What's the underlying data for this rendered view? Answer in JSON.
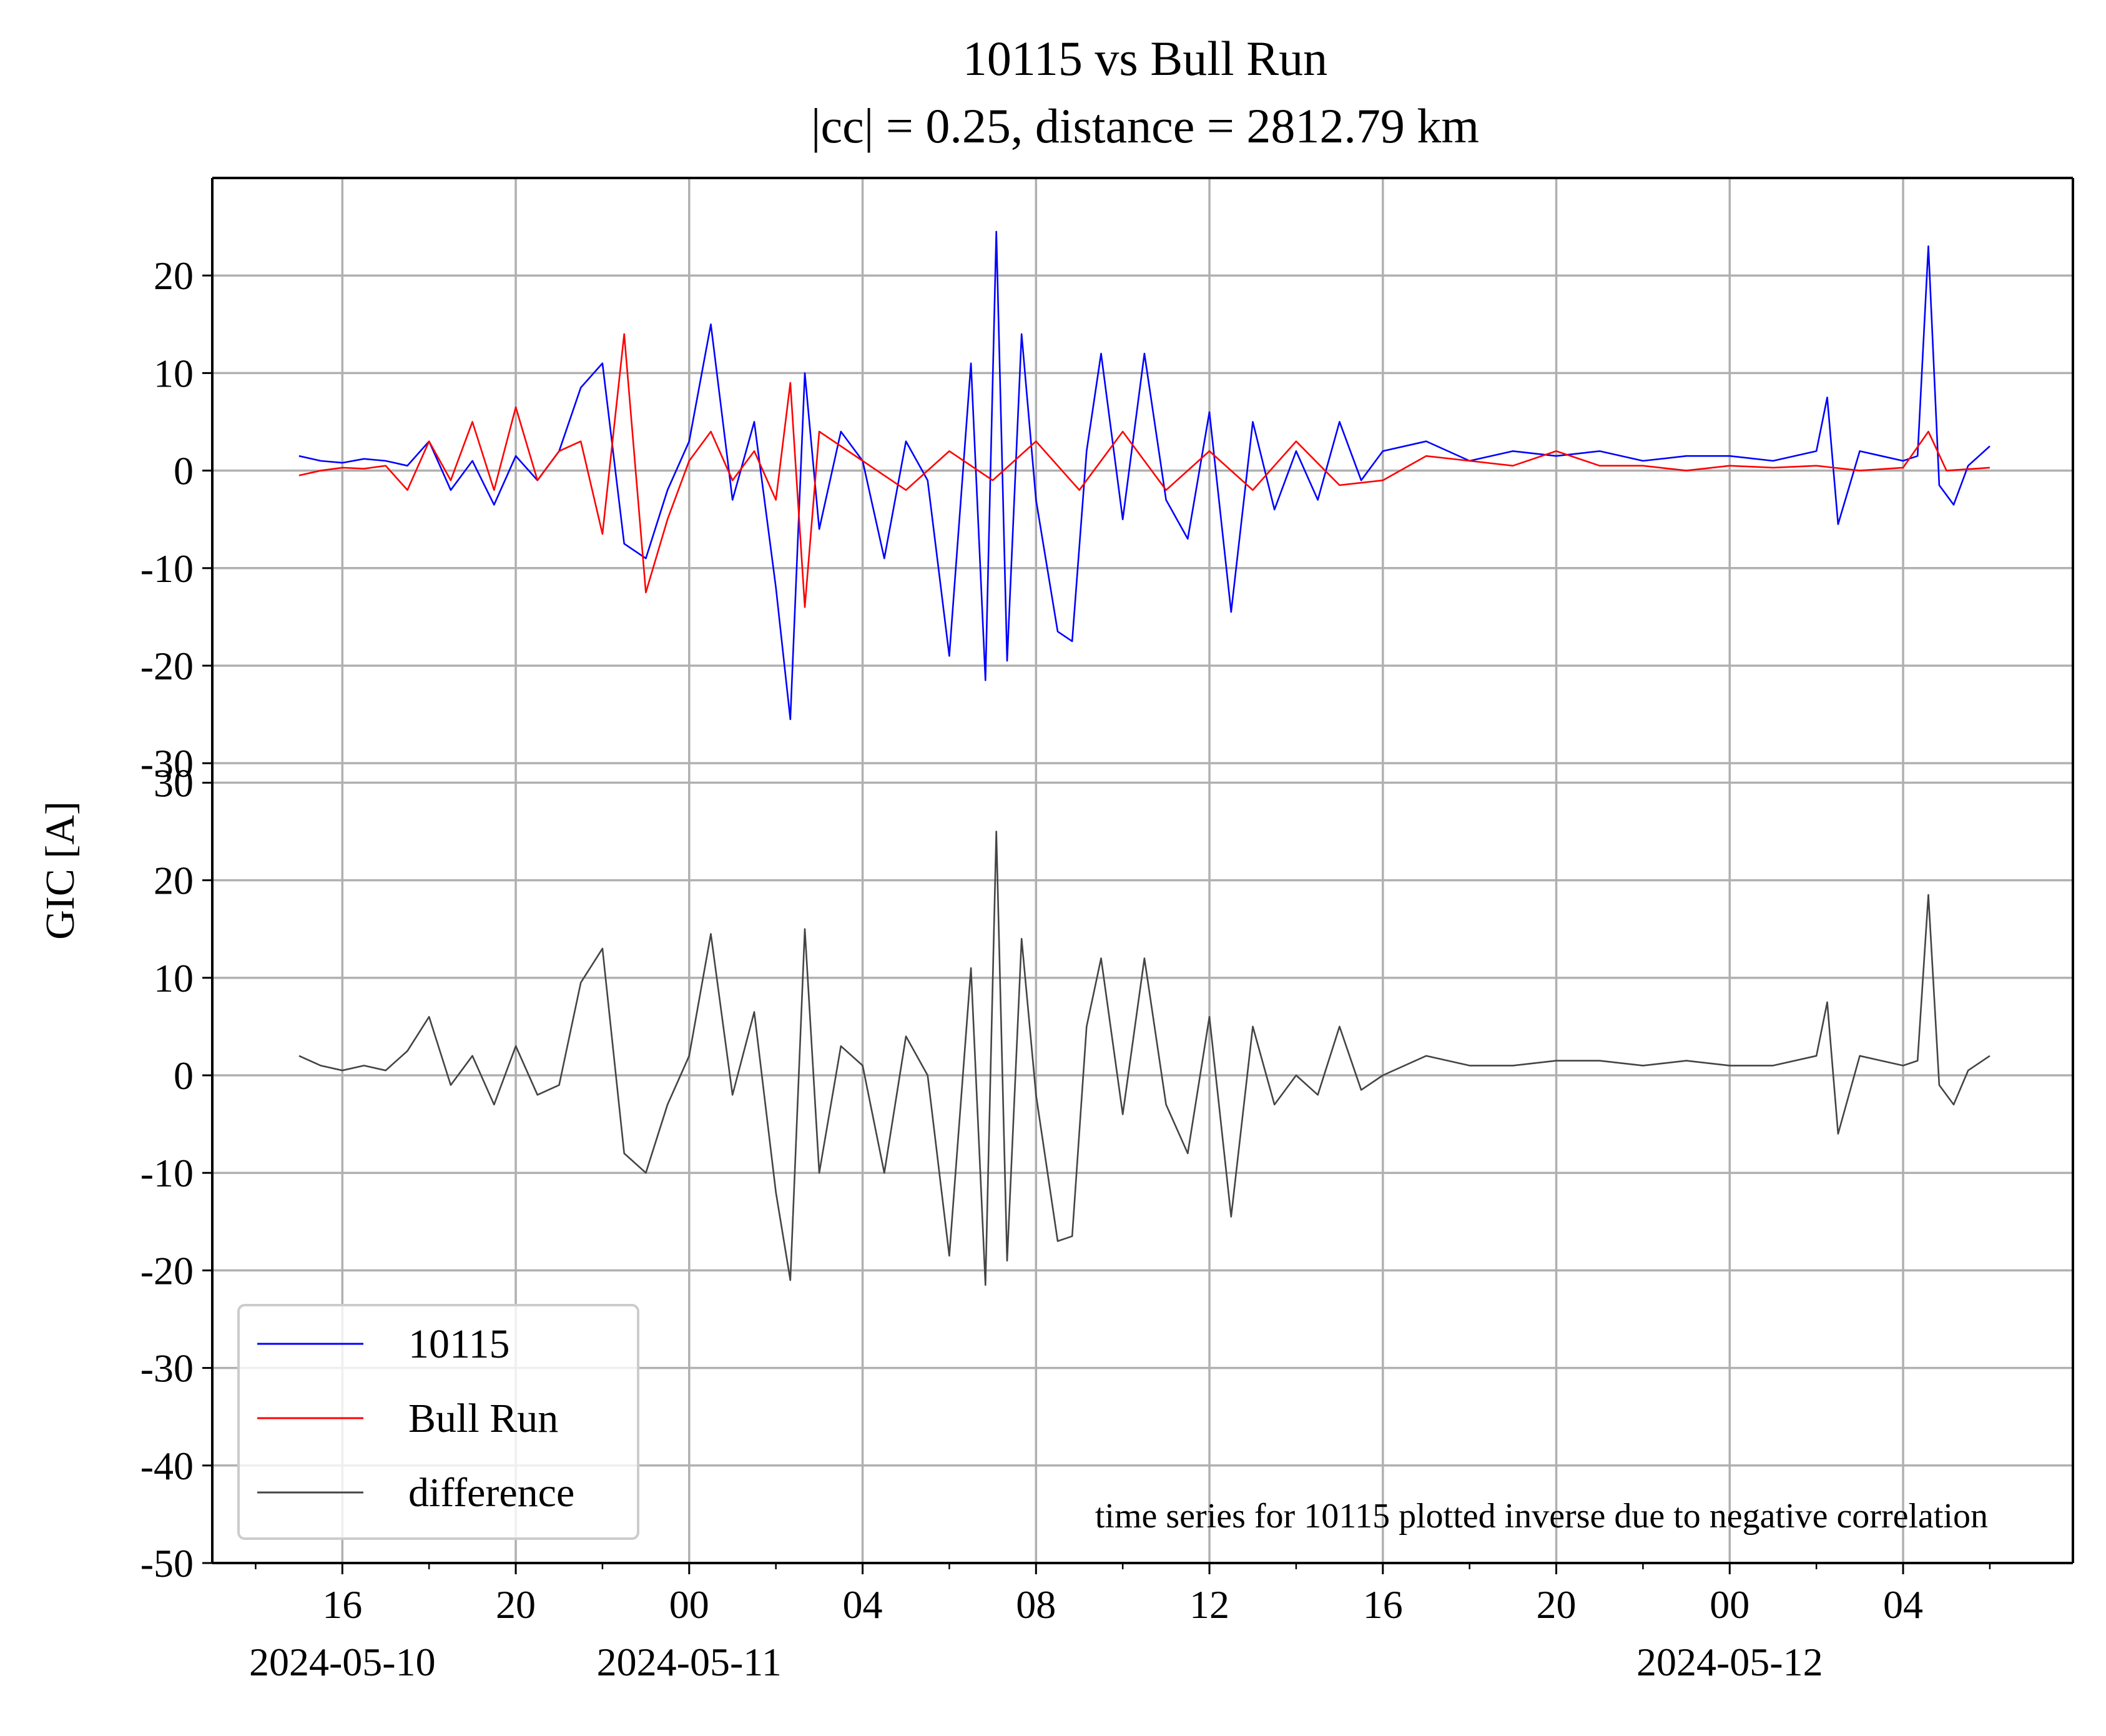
{
  "chart_data": [
    {
      "type": "line",
      "title": "10115 vs Bull Run",
      "subtitle": "|cc| = 0.25, distance = 2812.79 km",
      "ylabel": "GIC [A]",
      "xlim": [
        "2024-05-10T13:00",
        "2024-05-12T07:55"
      ],
      "ylim": [
        -30,
        30
      ],
      "yticks": [
        -30,
        -20,
        -10,
        0,
        10,
        20
      ],
      "grid": true,
      "x_tick_labels": [
        {
          "t": "2024-05-10T16:00",
          "label": "16",
          "date": "2024-05-10"
        },
        {
          "t": "2024-05-10T20:00",
          "label": "20",
          "date": ""
        },
        {
          "t": "2024-05-11T00:00",
          "label": "00",
          "date": "2024-05-11"
        },
        {
          "t": "2024-05-11T04:00",
          "label": "04",
          "date": ""
        },
        {
          "t": "2024-05-11T08:00",
          "label": "08",
          "date": ""
        },
        {
          "t": "2024-05-11T12:00",
          "label": "12",
          "date": ""
        },
        {
          "t": "2024-05-11T16:00",
          "label": "16",
          "date": ""
        },
        {
          "t": "2024-05-11T20:00",
          "label": "20",
          "date": ""
        },
        {
          "t": "2024-05-12T00:00",
          "label": "00",
          "date": "2024-05-12"
        },
        {
          "t": "2024-05-12T04:00",
          "label": "04",
          "date": ""
        }
      ],
      "series": [
        {
          "name": "10115",
          "color": "#0000ff",
          "x": [
            "2024-05-10T15:00",
            "2024-05-10T15:30",
            "2024-05-10T16:00",
            "2024-05-10T16:30",
            "2024-05-10T17:00",
            "2024-05-10T17:30",
            "2024-05-10T18:00",
            "2024-05-10T18:30",
            "2024-05-10T19:00",
            "2024-05-10T19:30",
            "2024-05-10T20:00",
            "2024-05-10T20:30",
            "2024-05-10T21:00",
            "2024-05-10T21:30",
            "2024-05-10T22:00",
            "2024-05-10T22:30",
            "2024-05-10T23:00",
            "2024-05-10T23:30",
            "2024-05-11T00:00",
            "2024-05-11T00:30",
            "2024-05-11T01:00",
            "2024-05-11T01:30",
            "2024-05-11T02:00",
            "2024-05-11T02:20",
            "2024-05-11T02:40",
            "2024-05-11T03:00",
            "2024-05-11T03:30",
            "2024-05-11T04:00",
            "2024-05-11T04:30",
            "2024-05-11T05:00",
            "2024-05-11T05:30",
            "2024-05-11T06:00",
            "2024-05-11T06:30",
            "2024-05-11T06:50",
            "2024-05-11T07:05",
            "2024-05-11T07:20",
            "2024-05-11T07:40",
            "2024-05-11T08:00",
            "2024-05-11T08:30",
            "2024-05-11T08:50",
            "2024-05-11T09:10",
            "2024-05-11T09:30",
            "2024-05-11T10:00",
            "2024-05-11T10:30",
            "2024-05-11T11:00",
            "2024-05-11T11:30",
            "2024-05-11T12:00",
            "2024-05-11T12:30",
            "2024-05-11T13:00",
            "2024-05-11T13:30",
            "2024-05-11T14:00",
            "2024-05-11T14:30",
            "2024-05-11T15:00",
            "2024-05-11T15:30",
            "2024-05-11T16:00",
            "2024-05-11T17:00",
            "2024-05-11T18:00",
            "2024-05-11T19:00",
            "2024-05-11T20:00",
            "2024-05-11T21:00",
            "2024-05-11T22:00",
            "2024-05-11T23:00",
            "2024-05-12T00:00",
            "2024-05-12T01:00",
            "2024-05-12T02:00",
            "2024-05-12T02:15",
            "2024-05-12T02:30",
            "2024-05-12T03:00",
            "2024-05-12T03:30",
            "2024-05-12T04:00",
            "2024-05-12T04:20",
            "2024-05-12T04:35",
            "2024-05-12T04:50",
            "2024-05-12T05:10",
            "2024-05-12T05:30",
            "2024-05-12T06:00"
          ],
          "values": [
            1.5,
            1.0,
            0.8,
            1.2,
            1.0,
            0.5,
            3.0,
            -2.0,
            1.0,
            -3.5,
            1.5,
            -1.0,
            2.0,
            8.5,
            11.0,
            -7.5,
            -9.0,
            -2.0,
            3.0,
            15.0,
            -3.0,
            5.0,
            -12.0,
            -25.5,
            10.0,
            -6.0,
            4.0,
            1.0,
            -9.0,
            3.0,
            -1.0,
            -19.0,
            11.0,
            -21.5,
            24.5,
            -19.5,
            14.0,
            -3.0,
            -16.5,
            -17.5,
            2.0,
            12.0,
            -5.0,
            12.0,
            -3.0,
            -7.0,
            6.0,
            -14.5,
            5.0,
            -4.0,
            2.0,
            -3.0,
            5.0,
            -1.0,
            2.0,
            3.0,
            1.0,
            2.0,
            1.5,
            2.0,
            1.0,
            1.5,
            1.5,
            1.0,
            2.0,
            7.5,
            -5.5,
            2.0,
            1.5,
            1.0,
            1.5,
            23.0,
            -1.5,
            -3.5,
            0.5,
            2.5
          ]
        },
        {
          "name": "Bull Run",
          "color": "#ff0000",
          "x": [
            "2024-05-10T15:00",
            "2024-05-10T15:30",
            "2024-05-10T16:00",
            "2024-05-10T16:30",
            "2024-05-10T17:00",
            "2024-05-10T17:30",
            "2024-05-10T18:00",
            "2024-05-10T18:30",
            "2024-05-10T19:00",
            "2024-05-10T19:30",
            "2024-05-10T20:00",
            "2024-05-10T20:30",
            "2024-05-10T21:00",
            "2024-05-10T21:30",
            "2024-05-10T22:00",
            "2024-05-10T22:30",
            "2024-05-10T23:00",
            "2024-05-10T23:30",
            "2024-05-11T00:00",
            "2024-05-11T00:30",
            "2024-05-11T01:00",
            "2024-05-11T01:30",
            "2024-05-11T02:00",
            "2024-05-11T02:20",
            "2024-05-11T02:40",
            "2024-05-11T03:00",
            "2024-05-11T04:00",
            "2024-05-11T05:00",
            "2024-05-11T06:00",
            "2024-05-11T07:00",
            "2024-05-11T08:00",
            "2024-05-11T09:00",
            "2024-05-11T10:00",
            "2024-05-11T11:00",
            "2024-05-11T12:00",
            "2024-05-11T13:00",
            "2024-05-11T14:00",
            "2024-05-11T15:00",
            "2024-05-11T16:00",
            "2024-05-11T17:00",
            "2024-05-11T18:00",
            "2024-05-11T19:00",
            "2024-05-11T20:00",
            "2024-05-11T21:00",
            "2024-05-11T22:00",
            "2024-05-11T23:00",
            "2024-05-12T00:00",
            "2024-05-12T01:00",
            "2024-05-12T02:00",
            "2024-05-12T03:00",
            "2024-05-12T04:00",
            "2024-05-12T04:35",
            "2024-05-12T05:00",
            "2024-05-12T06:00"
          ],
          "values": [
            -0.5,
            0.0,
            0.3,
            0.2,
            0.5,
            -2.0,
            3.0,
            -1.0,
            5.0,
            -2.0,
            6.5,
            -1.0,
            2.0,
            3.0,
            -6.5,
            14.0,
            -12.5,
            -5.0,
            1.0,
            4.0,
            -1.0,
            2.0,
            -3.0,
            9.0,
            -14.0,
            4.0,
            1.0,
            -2.0,
            2.0,
            -1.0,
            3.0,
            -2.0,
            4.0,
            -2.0,
            2.0,
            -2.0,
            3.0,
            -1.5,
            -1.0,
            1.5,
            1.0,
            0.5,
            2.0,
            0.5,
            0.5,
            0.0,
            0.5,
            0.3,
            0.5,
            0.0,
            0.3,
            4.0,
            0.0,
            0.3
          ]
        }
      ]
    },
    {
      "type": "line",
      "ylabel": "GIC [A]",
      "xlim": [
        "2024-05-10T13:00",
        "2024-05-12T07:55"
      ],
      "ylim": [
        -50,
        32
      ],
      "yticks": [
        -50,
        -40,
        -30,
        -20,
        -10,
        0,
        10,
        20,
        30
      ],
      "grid": true,
      "annotation": "time series for 10115 plotted inverse due to negative correlation",
      "legend": {
        "placement": "lower-left",
        "entries": [
          "10115",
          "Bull Run",
          "difference"
        ]
      },
      "series": [
        {
          "name": "difference",
          "color": "#444444",
          "x": [
            "2024-05-10T15:00",
            "2024-05-10T15:30",
            "2024-05-10T16:00",
            "2024-05-10T16:30",
            "2024-05-10T17:00",
            "2024-05-10T17:30",
            "2024-05-10T18:00",
            "2024-05-10T18:30",
            "2024-05-10T19:00",
            "2024-05-10T19:30",
            "2024-05-10T20:00",
            "2024-05-10T20:30",
            "2024-05-10T21:00",
            "2024-05-10T21:30",
            "2024-05-10T22:00",
            "2024-05-10T22:30",
            "2024-05-10T23:00",
            "2024-05-10T23:30",
            "2024-05-11T00:00",
            "2024-05-11T00:30",
            "2024-05-11T01:00",
            "2024-05-11T01:30",
            "2024-05-11T02:00",
            "2024-05-11T02:20",
            "2024-05-11T02:40",
            "2024-05-11T03:00",
            "2024-05-11T03:30",
            "2024-05-11T04:00",
            "2024-05-11T04:30",
            "2024-05-11T05:00",
            "2024-05-11T05:30",
            "2024-05-11T06:00",
            "2024-05-11T06:30",
            "2024-05-11T06:50",
            "2024-05-11T07:05",
            "2024-05-11T07:20",
            "2024-05-11T07:40",
            "2024-05-11T08:00",
            "2024-05-11T08:30",
            "2024-05-11T08:50",
            "2024-05-11T09:10",
            "2024-05-11T09:30",
            "2024-05-11T10:00",
            "2024-05-11T10:30",
            "2024-05-11T11:00",
            "2024-05-11T11:30",
            "2024-05-11T12:00",
            "2024-05-11T12:30",
            "2024-05-11T13:00",
            "2024-05-11T13:30",
            "2024-05-11T14:00",
            "2024-05-11T14:30",
            "2024-05-11T15:00",
            "2024-05-11T15:30",
            "2024-05-11T16:00",
            "2024-05-11T17:00",
            "2024-05-11T18:00",
            "2024-05-11T19:00",
            "2024-05-11T20:00",
            "2024-05-11T21:00",
            "2024-05-11T22:00",
            "2024-05-11T23:00",
            "2024-05-12T00:00",
            "2024-05-12T01:00",
            "2024-05-12T02:00",
            "2024-05-12T02:15",
            "2024-05-12T02:30",
            "2024-05-12T03:00",
            "2024-05-12T03:30",
            "2024-05-12T04:00",
            "2024-05-12T04:20",
            "2024-05-12T04:35",
            "2024-05-12T04:50",
            "2024-05-12T05:10",
            "2024-05-12T05:30",
            "2024-05-12T06:00"
          ],
          "values": [
            2.0,
            1.0,
            0.5,
            1.0,
            0.5,
            2.5,
            6.0,
            -1.0,
            2.0,
            -3.0,
            3.0,
            -2.0,
            -1.0,
            9.5,
            13.0,
            -8.0,
            -10.0,
            -3.0,
            2.0,
            14.5,
            -2.0,
            6.5,
            -12.0,
            -21.0,
            15.0,
            -10.0,
            3.0,
            1.0,
            -10.0,
            4.0,
            0.0,
            -18.5,
            11.0,
            -21.5,
            25.0,
            -19.0,
            14.0,
            -2.0,
            -17.0,
            -16.5,
            5.0,
            12.0,
            -4.0,
            12.0,
            -3.0,
            -8.0,
            6.0,
            -14.5,
            5.0,
            -3.0,
            0.0,
            -2.0,
            5.0,
            -1.5,
            0.0,
            2.0,
            1.0,
            1.0,
            1.5,
            1.5,
            1.0,
            1.5,
            1.0,
            1.0,
            2.0,
            7.5,
            -6.0,
            2.0,
            1.5,
            1.0,
            1.5,
            18.5,
            -1.0,
            -3.0,
            0.5,
            2.0
          ]
        }
      ]
    }
  ]
}
